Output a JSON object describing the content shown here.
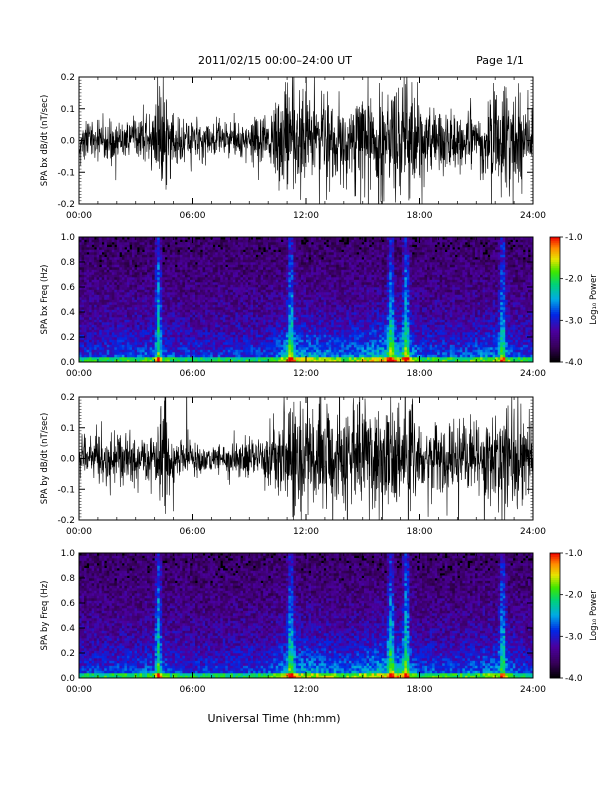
{
  "header": {
    "date_range": "2011/02/15   00:00–24:00 UT",
    "page": "Page 1/1"
  },
  "x_axis": {
    "label": "Universal Time (hh:mm)",
    "ticks": [
      "00:00",
      "06:00",
      "12:00",
      "18:00",
      "24:00"
    ],
    "range_hours": [
      0,
      24
    ]
  },
  "chart_data": [
    {
      "type": "line",
      "ylabel": "SPA bx dB/dt (nT/sec)",
      "ylim": [
        -0.2,
        0.2
      ],
      "yticks": [
        "-0.2",
        "-0.1",
        "0.0",
        "0.1",
        "0.2"
      ],
      "envelope_hours": [
        0,
        1,
        2,
        3,
        4,
        4.5,
        5,
        6,
        7,
        8,
        9,
        10,
        10.5,
        11,
        12,
        13,
        14,
        15,
        16,
        17,
        17.5,
        18,
        19,
        20,
        21,
        22,
        22.5,
        23,
        24
      ],
      "envelope_amplitude": [
        0.07,
        0.07,
        0.08,
        0.08,
        0.1,
        0.2,
        0.09,
        0.07,
        0.06,
        0.06,
        0.07,
        0.09,
        0.16,
        0.2,
        0.2,
        0.16,
        0.15,
        0.16,
        0.2,
        0.2,
        0.2,
        0.14,
        0.12,
        0.1,
        0.12,
        0.15,
        0.2,
        0.2,
        0.12
      ]
    },
    {
      "type": "heatmap",
      "ylabel": "SPA bx Freq (Hz)",
      "ylim": [
        0,
        1.0
      ],
      "yticks": [
        "0.0",
        "0.2",
        "0.4",
        "0.6",
        "0.8",
        "1.0"
      ],
      "colorbar": {
        "label": "Log₁₀ Power",
        "range": [
          -4.0,
          -1.0
        ],
        "ticks": [
          "-1.0",
          "-2.0",
          "-3.0",
          "-4.0"
        ]
      },
      "bright_bands_hours": [
        4.2,
        11.2,
        16.5,
        17.3,
        22.4
      ]
    },
    {
      "type": "line",
      "ylabel": "SPA by dB/dt (nT/sec)",
      "ylim": [
        -0.2,
        0.2
      ],
      "yticks": [
        "-0.2",
        "-0.1",
        "0.0",
        "0.1",
        "0.2"
      ],
      "envelope_hours": [
        0,
        1,
        2,
        3,
        4,
        4.5,
        5,
        6,
        7,
        8,
        9,
        10,
        10.5,
        11,
        12,
        13,
        14,
        15,
        16,
        17,
        17.5,
        18,
        19,
        20,
        21,
        22,
        22.5,
        23,
        24
      ],
      "envelope_amplitude": [
        0.06,
        0.08,
        0.09,
        0.08,
        0.09,
        0.2,
        0.08,
        0.06,
        0.05,
        0.06,
        0.07,
        0.09,
        0.18,
        0.2,
        0.2,
        0.18,
        0.16,
        0.18,
        0.2,
        0.2,
        0.2,
        0.16,
        0.14,
        0.12,
        0.13,
        0.16,
        0.2,
        0.2,
        0.12
      ]
    },
    {
      "type": "heatmap",
      "ylabel": "SPA by Freq (Hz)",
      "ylim": [
        0,
        1.0
      ],
      "yticks": [
        "0.0",
        "0.2",
        "0.4",
        "0.6",
        "0.8",
        "1.0"
      ],
      "colorbar": {
        "label": "Log₁₀ Power",
        "range": [
          -4.0,
          -1.0
        ],
        "ticks": [
          "-1.0",
          "-2.0",
          "-3.0",
          "-4.0"
        ]
      },
      "bright_bands_hours": [
        4.2,
        11.2,
        16.5,
        17.3,
        22.4
      ]
    }
  ]
}
